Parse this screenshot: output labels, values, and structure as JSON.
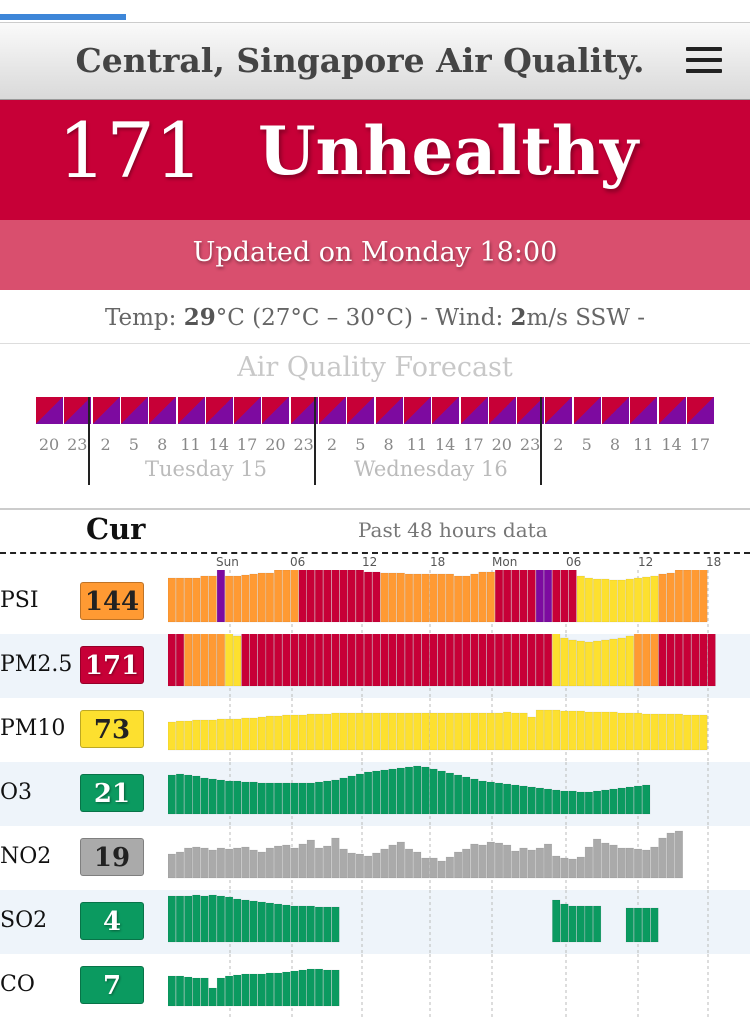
{
  "header": {
    "title": "Central, Singapore Air Quality."
  },
  "aqi": {
    "value": "171",
    "level": "Unhealthy",
    "color": "#c70037"
  },
  "updated": "Updated on Monday 18:00",
  "weather": {
    "temp_label": "Temp: ",
    "temp": "29",
    "temp_range": "°C (27°C – 30°C) - Wind: ",
    "wind": "2",
    "wind_rest": "m/s SSW -"
  },
  "forecast": {
    "title": "Air Quality Forecast",
    "hours": [
      "20",
      "23",
      "2",
      "5",
      "8",
      "11",
      "14",
      "17",
      "20",
      "23",
      "2",
      "5",
      "8",
      "11",
      "14",
      "17",
      "20",
      "23",
      "2",
      "5",
      "8",
      "11",
      "14",
      "17"
    ],
    "days": [
      "Tuesday 15",
      "Wednesday 16"
    ]
  },
  "table": {
    "cur_label": "Cur",
    "past_label": "Past 48 hours data",
    "ticks": [
      "Sun",
      "06",
      "12",
      "18",
      "Mon",
      "06",
      "12",
      "18"
    ]
  },
  "colors": {
    "good": "#0b9a60",
    "moderate": "#fde02f",
    "unhealthy_sens": "#ff9a33",
    "unhealthy": "#c70037",
    "very_unhealthy": "#7d0aa0",
    "na": "#aaaaaa"
  },
  "pollutants": [
    {
      "name": "PSI",
      "current": "144",
      "badge_color": "#ff9a33",
      "text_color": "#222",
      "values": [
        88,
        88,
        88,
        88,
        92,
        92,
        110,
        92,
        92,
        94,
        96,
        98,
        98,
        104,
        104,
        106,
        108,
        108,
        110,
        110,
        108,
        106,
        104,
        104,
        100,
        100,
        98,
        98,
        98,
        96,
        96,
        96,
        96,
        96,
        96,
        92,
        92,
        96,
        100,
        100,
        120,
        124,
        130,
        132,
        136,
        132,
        126,
        120,
        112,
        104,
        92,
        88,
        86,
        86,
        84,
        84,
        86,
        88,
        90,
        92,
        96,
        98,
        104,
        104,
        108,
        110,
        0
      ],
      "val_colors": [
        "usg",
        "usg",
        "usg",
        "usg",
        "usg",
        "usg",
        "vu",
        "usg",
        "usg",
        "usg",
        "usg",
        "usg",
        "usg",
        "usg",
        "usg",
        "usg",
        "u",
        "u",
        "u",
        "u",
        "u",
        "u",
        "u",
        "u",
        "u",
        "u",
        "usg",
        "usg",
        "usg",
        "usg",
        "usg",
        "usg",
        "usg",
        "usg",
        "usg",
        "usg",
        "usg",
        "usg",
        "usg",
        "usg",
        "u",
        "u",
        "u",
        "u",
        "u",
        "vu",
        "vu",
        "u",
        "u",
        "u",
        "m",
        "m",
        "m",
        "m",
        "m",
        "m",
        "m",
        "m",
        "m",
        "m",
        "usg",
        "usg",
        "usg",
        "usg",
        "usg",
        "usg",
        "na"
      ]
    },
    {
      "name": "PM2.5",
      "current": "171",
      "badge_color": "#c70037",
      "text_color": "#fff",
      "values": [
        140,
        144,
        130,
        126,
        124,
        122,
        118,
        110,
        100,
        140,
        142,
        144,
        144,
        144,
        144,
        144,
        144,
        144,
        144,
        144,
        144,
        144,
        144,
        144,
        144,
        144,
        144,
        144,
        144,
        144,
        144,
        144,
        146,
        150,
        150,
        148,
        146,
        150,
        154,
        158,
        160,
        158,
        150,
        146,
        150,
        152,
        146,
        110,
        96,
        92,
        90,
        88,
        90,
        92,
        94,
        96,
        100,
        116,
        132,
        136,
        140,
        144,
        146,
        148,
        148,
        150,
        148
      ],
      "val_colors": [
        "u",
        "u",
        "usg",
        "usg",
        "usg",
        "usg",
        "usg",
        "m",
        "m",
        "u",
        "u",
        "u",
        "u",
        "u",
        "u",
        "u",
        "u",
        "u",
        "u",
        "u",
        "u",
        "u",
        "u",
        "u",
        "u",
        "u",
        "u",
        "u",
        "u",
        "u",
        "u",
        "u",
        "u",
        "u",
        "u",
        "u",
        "u",
        "u",
        "u",
        "u",
        "u",
        "u",
        "u",
        "u",
        "u",
        "u",
        "u",
        "m",
        "m",
        "m",
        "m",
        "m",
        "m",
        "m",
        "m",
        "m",
        "m",
        "usg",
        "usg",
        "usg",
        "u",
        "u",
        "u",
        "u",
        "u",
        "u",
        "u"
      ]
    },
    {
      "name": "PM10",
      "current": "73",
      "badge_color": "#fde02f",
      "text_color": "#222",
      "values": [
        56,
        58,
        58,
        60,
        60,
        60,
        62,
        62,
        62,
        64,
        64,
        66,
        68,
        68,
        70,
        70,
        70,
        72,
        72,
        72,
        74,
        74,
        74,
        74,
        74,
        74,
        74,
        74,
        74,
        74,
        74,
        74,
        74,
        74,
        74,
        74,
        74,
        74,
        74,
        74,
        74,
        76,
        74,
        74,
        66,
        80,
        80,
        80,
        78,
        78,
        78,
        76,
        76,
        76,
        76,
        74,
        74,
        74,
        72,
        72,
        72,
        72,
        72,
        70,
        70,
        70,
        0
      ],
      "val_colors": [
        "m"
      ]
    },
    {
      "name": "O3",
      "current": "21",
      "badge_color": "#0b9a60",
      "text_color": "#fff",
      "values": [
        78,
        80,
        78,
        76,
        72,
        70,
        68,
        66,
        66,
        64,
        64,
        62,
        62,
        62,
        62,
        62,
        62,
        62,
        64,
        66,
        68,
        72,
        76,
        80,
        84,
        86,
        88,
        90,
        92,
        94,
        96,
        94,
        90,
        86,
        82,
        78,
        74,
        70,
        66,
        64,
        62,
        60,
        58,
        56,
        54,
        52,
        50,
        48,
        46,
        46,
        44,
        44,
        46,
        48,
        50,
        52,
        54,
        56,
        58,
        0
      ],
      "val_colors": [
        "g"
      ]
    },
    {
      "name": "NO2",
      "current": "19",
      "badge_color": "#aaaaaa",
      "text_color": "#222",
      "values": [
        48,
        52,
        60,
        62,
        60,
        56,
        60,
        58,
        60,
        62,
        56,
        52,
        60,
        64,
        66,
        60,
        68,
        76,
        60,
        64,
        80,
        58,
        50,
        48,
        44,
        50,
        58,
        66,
        72,
        58,
        52,
        40,
        40,
        34,
        42,
        52,
        58,
        68,
        66,
        72,
        70,
        66,
        54,
        60,
        56,
        60,
        68,
        44,
        40,
        38,
        42,
        62,
        78,
        70,
        66,
        60,
        60,
        58,
        56,
        62,
        80,
        90,
        94,
        0
      ],
      "val_colors": [
        "na"
      ]
    },
    {
      "name": "SO2",
      "current": "4",
      "badge_color": "#0b9a60",
      "text_color": "#fff",
      "values": [
        92,
        92,
        92,
        94,
        92,
        94,
        92,
        90,
        86,
        84,
        82,
        80,
        78,
        76,
        74,
        72,
        72,
        72,
        70,
        70,
        70,
        0,
        0,
        0,
        0,
        0,
        0,
        0,
        0,
        0,
        0,
        0,
        0,
        0,
        0,
        0,
        0,
        0,
        0,
        0,
        0,
        0,
        0,
        0,
        0,
        0,
        0,
        84,
        76,
        72,
        72,
        72,
        72,
        0,
        0,
        0,
        68,
        68,
        68,
        68,
        0,
        0,
        0,
        0,
        0,
        0,
        0
      ],
      "val_colors": [
        "g"
      ]
    },
    {
      "name": "CO",
      "current": "7",
      "badge_color": "#0b9a60",
      "text_color": "#fff",
      "values": [
        60,
        60,
        58,
        56,
        56,
        36,
        56,
        60,
        62,
        64,
        64,
        64,
        66,
        66,
        68,
        70,
        72,
        74,
        74,
        72,
        72,
        0,
        0,
        0,
        0,
        0,
        0,
        0,
        0,
        0,
        0,
        0,
        0,
        0,
        0,
        0,
        0,
        0,
        0,
        0,
        0,
        0,
        0,
        0,
        0,
        0,
        0,
        0,
        0,
        0,
        0,
        0,
        0,
        0,
        0,
        0,
        0,
        0,
        0,
        0,
        0,
        0,
        0,
        0,
        0,
        0,
        0
      ],
      "val_colors": [
        "g"
      ]
    }
  ]
}
